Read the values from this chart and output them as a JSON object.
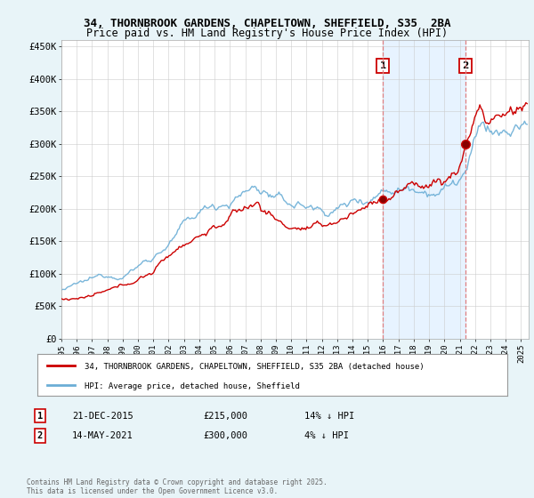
{
  "title_line1": "34, THORNBROOK GARDENS, CHAPELTOWN, SHEFFIELD, S35  2BA",
  "title_line2": "Price paid vs. HM Land Registry's House Price Index (HPI)",
  "ylim": [
    0,
    460000
  ],
  "yticks": [
    0,
    50000,
    100000,
    150000,
    200000,
    250000,
    300000,
    350000,
    400000,
    450000
  ],
  "ytick_labels": [
    "£0",
    "£50K",
    "£100K",
    "£150K",
    "£200K",
    "£250K",
    "£300K",
    "£350K",
    "£400K",
    "£450K"
  ],
  "hpi_color": "#6baed6",
  "property_color": "#cc0000",
  "dashed_color": "#e08080",
  "shade_color": "#ddeeff",
  "background_color": "#e8f4f8",
  "plot_background": "#ffffff",
  "sale1_price": 215000,
  "sale1_date": "21-DEC-2015",
  "sale1_label": "14% ↓ HPI",
  "sale1_x": 2015.97,
  "sale2_price": 300000,
  "sale2_date": "14-MAY-2021",
  "sale2_label": "4% ↓ HPI",
  "sale2_x": 2021.37,
  "legend_property": "34, THORNBROOK GARDENS, CHAPELTOWN, SHEFFIELD, S35 2BA (detached house)",
  "legend_hpi": "HPI: Average price, detached house, Sheffield",
  "footnote": "Contains HM Land Registry data © Crown copyright and database right 2025.\nThis data is licensed under the Open Government Licence v3.0.",
  "xmin": 1995.0,
  "xmax": 2025.5
}
